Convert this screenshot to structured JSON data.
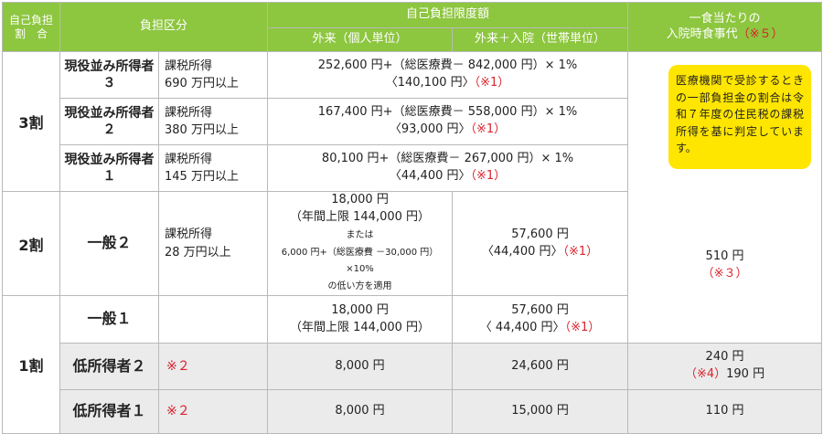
{
  "header": {
    "self_ratio": "自己負担割合",
    "self_ratio_line1": "自己負担",
    "self_ratio_line2": "割　合",
    "category": "負担区分",
    "limit": "自己負担限度額",
    "outpatient": "外来（個人単位）",
    "outpatient_inpatient": "外来＋入院（世帯単位）",
    "meal_line1": "一食当たりの",
    "meal_line2": "入院時食事代",
    "meal_note": "（※５）"
  },
  "rows": {
    "tier3": {
      "ratio": "3割"
    },
    "r3": {
      "category": "現役並み所得者３",
      "cond1": "課税所得",
      "cond2": "690 万円以上",
      "formula": "252,600 円+（総医療費－ 842,000 円）× 1%",
      "cap": "〈140,100 円〉",
      "note": "（※1）"
    },
    "r2": {
      "category": "現役並み所得者２",
      "cond1": "課税所得",
      "cond2": "380 万円以上",
      "formula": "167,400 円+（総医療費－ 558,000 円）× 1%",
      "cap": "〈93,000 円〉",
      "note": "（※1）"
    },
    "r1": {
      "category": "現役並み所得者１",
      "cond1": "課税所得",
      "cond2": "145 万円以上",
      "formula": "80,100 円+（総医療費－ 267,000 円）× 1%",
      "cap": "〈44,400 円〉",
      "note": "（※1）"
    },
    "g2": {
      "ratio": "2割",
      "category": "一般２",
      "cond1": "課税所得",
      "cond2": "28 万円以上",
      "out1": "18,000 円",
      "out2": "（年間上限 144,000 円）",
      "out3": "または",
      "out4": "6,000 円+（総医療費 －30,000 円）×10%",
      "out5": "の低い方を適用",
      "both1": "57,600 円",
      "both2": "〈44,400 円〉",
      "both_note": "（※1）",
      "meal1": "510 円",
      "meal2": "（※３）"
    },
    "g1": {
      "ratio": "1割",
      "category": "一般１",
      "out1": "18,000 円",
      "out2": "（年間上限 144,000 円）",
      "both1": "57,600 円",
      "both2": "〈 44,400 円〉",
      "both_note": "（※1）"
    },
    "low2": {
      "category": "低所得者２",
      "note": "※２",
      "out": "8,000 円",
      "both": "24,600 円",
      "meal1": "240 円",
      "meal2_note": "（※4）",
      "meal2": "190 円"
    },
    "low1": {
      "category": "低所得者１",
      "note": "※２",
      "out": "8,000 円",
      "both": "15,000 円",
      "meal": "110 円"
    }
  },
  "note_box": {
    "text": "医療機関で受診するときの一部負担金の割合は令和７年度の住民税の課税所得を基に判定しています。"
  },
  "colors": {
    "header_green": "#8dc63f",
    "note_yellow": "#ffe600",
    "note_red": "#d9232d",
    "row_gray": "#ebebeb"
  }
}
